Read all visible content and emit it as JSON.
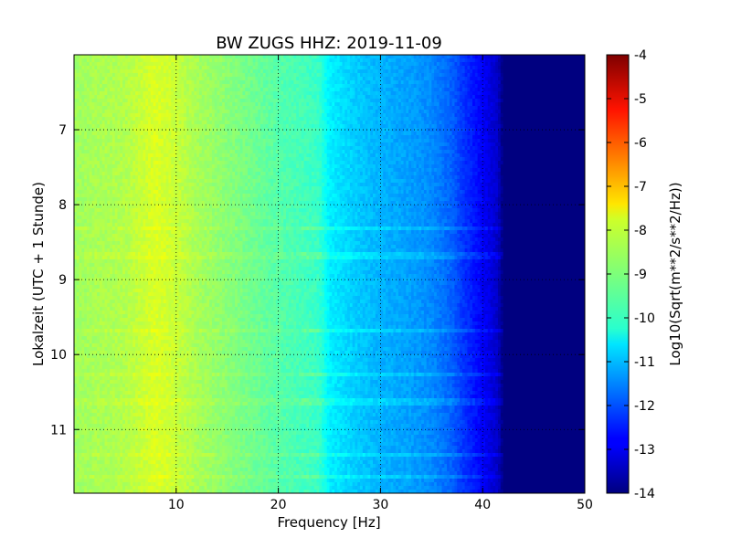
{
  "chart_data": {
    "type": "heatmap",
    "title": "BW ZUGS HHZ: 2019-11-09",
    "xlabel": "Frequency [Hz]",
    "ylabel": "Lokalzeit (UTC + 1 Stunde)",
    "xlim": [
      0,
      50
    ],
    "ylim": [
      6.0,
      11.85
    ],
    "y_inverted": true,
    "x_ticks": [
      "10",
      "20",
      "30",
      "40",
      "50"
    ],
    "y_ticks": [
      "7",
      "8",
      "9",
      "10",
      "11"
    ],
    "grid": true,
    "colormap": "jet",
    "colorbar": {
      "label": "Log10(Sqrt(m**2/s**2/Hz))",
      "range": [
        -14,
        -4
      ],
      "ticks": [
        "-4",
        "-5",
        "-6",
        "-7",
        "-8",
        "-9",
        "-10",
        "-11",
        "-12",
        "-13",
        "-14"
      ]
    },
    "spectral_profile": {
      "frequency_hz": [
        0,
        2,
        5,
        8,
        10,
        12,
        15,
        20,
        24,
        25,
        28,
        30,
        33,
        35,
        37,
        38,
        40,
        41.5,
        42,
        50
      ],
      "log10_amplitude": [
        -8.7,
        -8.6,
        -8.5,
        -8.1,
        -8.3,
        -8.6,
        -8.9,
        -9.4,
        -9.7,
        -10.4,
        -10.8,
        -11.0,
        -11.2,
        -11.4,
        -11.8,
        -12.2,
        -12.8,
        -13.3,
        -14.0,
        -14.0
      ]
    },
    "band_times_hours": [
      8.3,
      8.65,
      9.65,
      10.25,
      10.6,
      11.3,
      11.6
    ]
  },
  "colors": {
    "axes_frame": "#000000",
    "grid": "#000000",
    "background": "#ffffff"
  }
}
